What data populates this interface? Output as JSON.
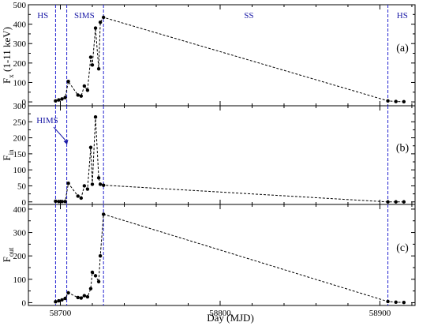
{
  "chart_data": {
    "type": "line",
    "xlabel": "Day (MJD)",
    "xlim": [
      58680,
      58922
    ],
    "x_ticks": [
      58700,
      58800,
      58900
    ],
    "x_tick_labels": [
      "58700",
      "58800",
      "58900"
    ],
    "state_boundaries": [
      58697,
      58704,
      58727,
      58905
    ],
    "state_labels": [
      {
        "text": "HS",
        "x": 58689
      },
      {
        "text": "SIMS",
        "x": 58715
      },
      {
        "text": "SS",
        "x": 58818
      },
      {
        "text": "HS",
        "x": 58914
      }
    ],
    "hims_label": "HIMS",
    "x": [
      58697,
      58699,
      58701,
      58703,
      58705,
      58711,
      58713,
      58715,
      58717,
      58719,
      58720,
      58722,
      58724,
      58725,
      58727,
      58905,
      58910,
      58915
    ],
    "panels": [
      {
        "tag": "(a)",
        "ylabel_main": "F",
        "ylabel_sub": "x",
        "ylabel_tail": " (1-11 keV)",
        "ylim": [
          -20,
          500
        ],
        "y_ticks": [
          0,
          100,
          200,
          300,
          400,
          500
        ],
        "y_tick_labels": [
          "0",
          "100",
          "200",
          "300",
          "400",
          "500"
        ],
        "values": [
          5,
          10,
          15,
          22,
          105,
          35,
          30,
          82,
          60,
          230,
          190,
          380,
          170,
          410,
          435,
          5,
          2,
          1
        ]
      },
      {
        "tag": "(b)",
        "ylabel_main": "F",
        "ylabel_sub": "in",
        "ylabel_tail": "",
        "ylim": [
          -8,
          300
        ],
        "y_ticks": [
          0,
          50,
          100,
          150,
          200,
          250,
          300
        ],
        "y_tick_labels": [
          "0",
          "50",
          "100",
          "150",
          "200",
          "250",
          "300"
        ],
        "values": [
          2,
          1,
          1,
          1,
          58,
          18,
          12,
          50,
          40,
          170,
          55,
          265,
          75,
          55,
          52,
          0,
          0,
          0
        ]
      },
      {
        "tag": "(c)",
        "ylabel_main": "F",
        "ylabel_sub": "out",
        "ylabel_tail": "",
        "ylim": [
          -12,
          420
        ],
        "y_ticks": [
          0,
          100,
          200,
          300,
          400
        ],
        "y_tick_labels": [
          "0",
          "100",
          "200",
          "300",
          "400"
        ],
        "values": [
          4,
          8,
          12,
          18,
          42,
          22,
          20,
          30,
          25,
          60,
          130,
          115,
          90,
          200,
          378,
          5,
          2,
          1
        ]
      }
    ]
  }
}
